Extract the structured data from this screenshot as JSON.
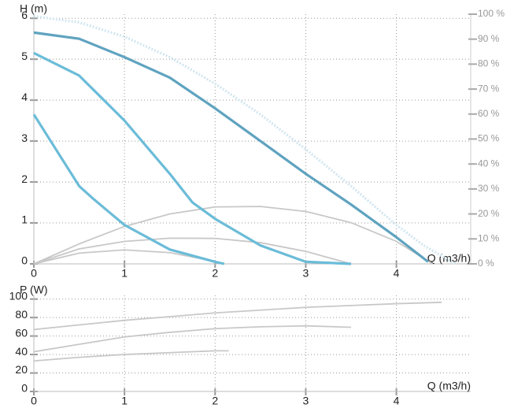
{
  "chart_data": [
    {
      "type": "line",
      "y_label": "H (m)",
      "x_label": "Q (m3/h)",
      "grid": true,
      "grid_style": "dotted",
      "xlim": [
        0,
        4.82
      ],
      "xticks": [
        0,
        1,
        2,
        3,
        4
      ],
      "ylim": [
        0,
        6.1
      ],
      "yticks": [
        0,
        1,
        2,
        3,
        4,
        5,
        6
      ],
      "y2lim": [
        0,
        100
      ],
      "y2ticks": [
        {
          "value": 0,
          "label": "0 %"
        },
        {
          "value": 10,
          "label": "10 %"
        },
        {
          "value": 20,
          "label": "20 %"
        },
        {
          "value": 30,
          "label": "30 %"
        },
        {
          "value": 40,
          "label": "40 %"
        },
        {
          "value": 50,
          "label": "50 %"
        },
        {
          "value": 60,
          "label": "60 %"
        },
        {
          "value": 70,
          "label": "70 %"
        },
        {
          "value": 80,
          "label": "80 %"
        },
        {
          "value": 90,
          "label": "90 %"
        },
        {
          "value": 100,
          "label": "100 %"
        }
      ],
      "series": [
        {
          "color": "#d2e6f0",
          "style": "dotted",
          "x": [
            0,
            0.5,
            1,
            1.5,
            2,
            2.5,
            3,
            3.5,
            4,
            4.3,
            4.65
          ],
          "values": [
            6.05,
            5.9,
            5.55,
            5.05,
            4.4,
            3.65,
            2.8,
            1.9,
            0.95,
            0.45,
            0
          ]
        },
        {
          "color": "#c8c8c8",
          "axis": "y2",
          "x": [
            0,
            0.5,
            1,
            1.5,
            2,
            2.5,
            3,
            3.5,
            4,
            4.4
          ],
          "values": [
            0,
            8,
            15,
            20,
            22.8,
            23,
            21,
            16.5,
            9,
            0
          ]
        },
        {
          "color": "#c8c8c8",
          "axis": "y2",
          "x": [
            0,
            0.5,
            1,
            1.5,
            2,
            2.5,
            3,
            3.5
          ],
          "values": [
            0,
            6,
            9,
            10.3,
            10.2,
            8.5,
            5,
            0
          ]
        },
        {
          "color": "#c8c8c8",
          "axis": "y2",
          "x": [
            0,
            0.5,
            1,
            1.5,
            2,
            2.1
          ],
          "values": [
            0,
            4.3,
            5.6,
            4.5,
            1,
            0
          ]
        },
        {
          "color": "#5fa3c0",
          "x": [
            0,
            0.5,
            1,
            1.5,
            2,
            2.5,
            3,
            3.5,
            4,
            4.35
          ],
          "values": [
            5.65,
            5.5,
            5.05,
            4.55,
            3.8,
            3.0,
            2.2,
            1.45,
            0.65,
            0.05
          ]
        },
        {
          "color": "#6bbcd8",
          "x": [
            0,
            0.5,
            1,
            1.5,
            1.75,
            2,
            2.5,
            3,
            3.5
          ],
          "values": [
            5.15,
            4.6,
            3.5,
            2.2,
            1.5,
            1.1,
            0.45,
            0.05,
            0
          ]
        },
        {
          "color": "#6bbcd8",
          "x": [
            0,
            0.5,
            0.65,
            1,
            1.5,
            2,
            2.1
          ],
          "values": [
            3.65,
            1.9,
            1.6,
            0.95,
            0.35,
            0.05,
            0
          ]
        }
      ]
    },
    {
      "type": "line",
      "y_label": "P (W)",
      "x_label": "Q (m3/h)",
      "grid": true,
      "grid_style": "dotted",
      "xlim": [
        0,
        4.82
      ],
      "xticks": [
        0,
        1,
        2,
        3,
        4
      ],
      "ylim": [
        0,
        104
      ],
      "yticks": [
        0,
        20,
        40,
        60,
        80,
        100
      ],
      "series": [
        {
          "color": "#c8c8c8",
          "x": [
            0,
            0.5,
            1,
            1.5,
            2,
            2.5,
            3,
            3.5,
            4,
            4.5
          ],
          "values": [
            67,
            72,
            77,
            81,
            85,
            88,
            91,
            93,
            95,
            96.5
          ]
        },
        {
          "color": "#c8c8c8",
          "x": [
            0,
            0.5,
            1,
            1.5,
            2,
            2.5,
            3,
            3.5
          ],
          "values": [
            43,
            51,
            59,
            64,
            68,
            70,
            71,
            69.5
          ]
        },
        {
          "color": "#c8c8c8",
          "x": [
            0,
            0.5,
            1,
            1.5,
            2,
            2.15
          ],
          "values": [
            33,
            37,
            40,
            42,
            44,
            44
          ]
        }
      ]
    }
  ]
}
